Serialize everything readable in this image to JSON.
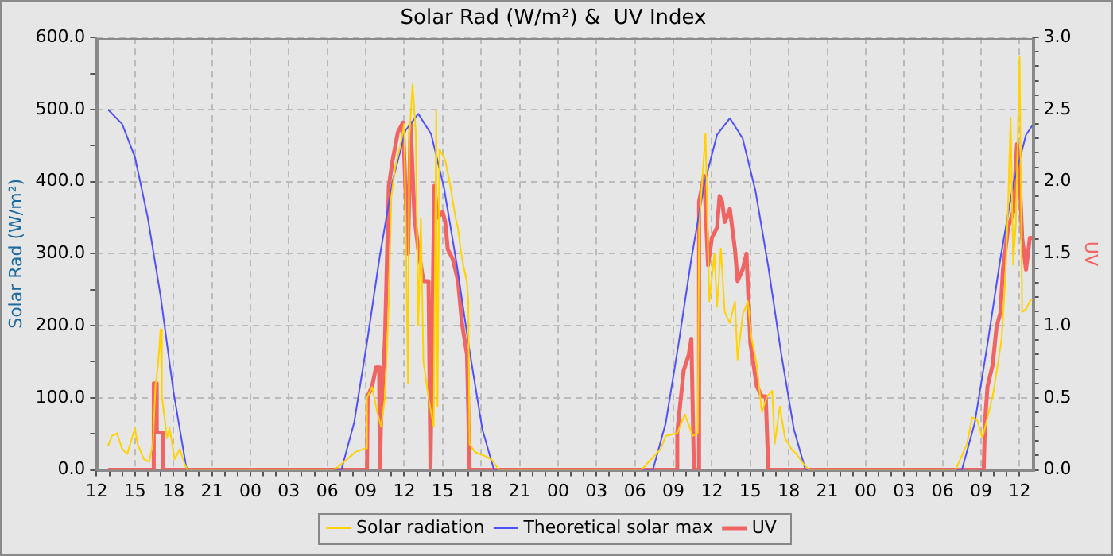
{
  "chart_data": {
    "type": "line",
    "title": "Solar Rad (W/m²) &  UV Index",
    "ylabel": "Solar Rad (W/m²)",
    "y2label": "UV",
    "xlim": [
      "--01-01T12:00",
      "--01-04T13:00"
    ],
    "xticks": [
      {
        "value": "--01-01T12:00",
        "label": "12"
      },
      {
        "value": "--01-01T13:00",
        "label": null
      },
      {
        "value": "--01-01T14:00",
        "label": null
      },
      {
        "value": "--01-01T15:00",
        "label": "15"
      },
      {
        "value": "--01-01T16:00",
        "label": null
      },
      {
        "value": "--01-01T17:00",
        "label": null
      },
      {
        "value": "--01-01T18:00",
        "label": "18"
      },
      {
        "value": "--01-01T19:00",
        "label": null
      },
      {
        "value": "--01-01T20:00",
        "label": null
      },
      {
        "value": "--01-01T21:00",
        "label": "21"
      },
      {
        "value": "--01-01T22:00",
        "label": null
      },
      {
        "value": "--01-01T23:00",
        "label": null
      },
      {
        "value": "--01-02T00:00",
        "label": "00"
      },
      {
        "value": "--01-02T01:00",
        "label": null
      },
      {
        "value": "--01-02T02:00",
        "label": null
      },
      {
        "value": "--01-02T03:00",
        "label": "03"
      },
      {
        "value": "--01-02T04:00",
        "label": null
      },
      {
        "value": "--01-02T05:00",
        "label": null
      },
      {
        "value": "--01-02T06:00",
        "label": "06"
      },
      {
        "value": "--01-02T07:00",
        "label": null
      },
      {
        "value": "--01-02T08:00",
        "label": null
      },
      {
        "value": "--01-02T09:00",
        "label": "09"
      },
      {
        "value": "--01-02T10:00",
        "label": null
      },
      {
        "value": "--01-02T11:00",
        "label": null
      },
      {
        "value": "--01-02T12:00",
        "label": "12"
      },
      {
        "value": "--01-02T13:00",
        "label": null
      },
      {
        "value": "--01-02T14:00",
        "label": null
      },
      {
        "value": "--01-02T15:00",
        "label": "15"
      },
      {
        "value": "--01-02T16:00",
        "label": null
      },
      {
        "value": "--01-02T17:00",
        "label": null
      },
      {
        "value": "--01-02T18:00",
        "label": "18"
      },
      {
        "value": "--01-02T19:00",
        "label": null
      },
      {
        "value": "--01-02T20:00",
        "label": null
      },
      {
        "value": "--01-02T21:00",
        "label": "21"
      },
      {
        "value": "--01-02T22:00",
        "label": null
      },
      {
        "value": "--01-02T23:00",
        "label": null
      },
      {
        "value": "--01-03T00:00",
        "label": "00"
      },
      {
        "value": "--01-03T01:00",
        "label": null
      },
      {
        "value": "--01-03T02:00",
        "label": null
      },
      {
        "value": "--01-03T03:00",
        "label": "03"
      },
      {
        "value": "--01-03T04:00",
        "label": null
      },
      {
        "value": "--01-03T05:00",
        "label": null
      },
      {
        "value": "--01-03T06:00",
        "label": "06"
      },
      {
        "value": "--01-03T07:00",
        "label": null
      },
      {
        "value": "--01-03T08:00",
        "label": null
      },
      {
        "value": "--01-03T09:00",
        "label": "09"
      },
      {
        "value": "--01-03T10:00",
        "label": null
      },
      {
        "value": "--01-03T11:00",
        "label": null
      },
      {
        "value": "--01-03T12:00",
        "label": "12"
      },
      {
        "value": "--01-03T13:00",
        "label": null
      },
      {
        "value": "--01-03T14:00",
        "label": null
      },
      {
        "value": "--01-03T15:00",
        "label": "15"
      },
      {
        "value": "--01-03T16:00",
        "label": null
      },
      {
        "value": "--01-03T17:00",
        "label": null
      },
      {
        "value": "--01-03T18:00",
        "label": "18"
      },
      {
        "value": "--01-03T19:00",
        "label": null
      },
      {
        "value": "--01-03T20:00",
        "label": null
      },
      {
        "value": "--01-03T21:00",
        "label": "21"
      },
      {
        "value": "--01-03T22:00",
        "label": null
      },
      {
        "value": "--01-03T23:00",
        "label": null
      },
      {
        "value": "--01-04T00:00",
        "label": "00"
      },
      {
        "value": "--01-04T01:00",
        "label": null
      },
      {
        "value": "--01-04T02:00",
        "label": null
      },
      {
        "value": "--01-04T03:00",
        "label": "03"
      },
      {
        "value": "--01-04T04:00",
        "label": null
      },
      {
        "value": "--01-04T05:00",
        "label": null
      },
      {
        "value": "--01-04T06:00",
        "label": "06"
      },
      {
        "value": "--01-04T07:00",
        "label": null
      },
      {
        "value": "--01-04T08:00",
        "label": null
      },
      {
        "value": "--01-04T09:00",
        "label": "09"
      },
      {
        "value": "--01-04T10:00",
        "label": null
      },
      {
        "value": "--01-04T11:00",
        "label": null
      },
      {
        "value": "--01-04T12:00",
        "label": "12"
      }
    ],
    "ylim": [
      0,
      600
    ],
    "yticks": [
      {
        "value": 0,
        "label": "0.0"
      },
      {
        "value": 50,
        "label": null
      },
      {
        "value": 100,
        "label": "100.0"
      },
      {
        "value": 150,
        "label": null
      },
      {
        "value": 200,
        "label": "200.0"
      },
      {
        "value": 250,
        "label": null
      },
      {
        "value": 300,
        "label": "300.0"
      },
      {
        "value": 350,
        "label": null
      },
      {
        "value": 400,
        "label": "400.0"
      },
      {
        "value": 450,
        "label": null
      },
      {
        "value": 500,
        "label": "500.0"
      },
      {
        "value": 550,
        "label": null
      },
      {
        "value": 600,
        "label": "600.0"
      }
    ],
    "y2lim": [
      0,
      3
    ],
    "y2ticks": [
      {
        "value": 0,
        "label": "0.0"
      },
      {
        "value": 0.1,
        "label": null
      },
      {
        "value": 0.2,
        "label": null
      },
      {
        "value": 0.3,
        "label": null
      },
      {
        "value": 0.4,
        "label": null
      },
      {
        "value": 0.5,
        "label": "0.5"
      },
      {
        "value": 0.6,
        "label": null
      },
      {
        "value": 0.7,
        "label": null
      },
      {
        "value": 0.8,
        "label": null
      },
      {
        "value": 0.9,
        "label": null
      },
      {
        "value": 1,
        "label": "1.0"
      },
      {
        "value": 1.1,
        "label": null
      },
      {
        "value": 1.2,
        "label": null
      },
      {
        "value": 1.3,
        "label": null
      },
      {
        "value": 1.4,
        "label": null
      },
      {
        "value": 1.5,
        "label": "1.5"
      },
      {
        "value": 1.6,
        "label": null
      },
      {
        "value": 1.7,
        "label": null
      },
      {
        "value": 1.8,
        "label": null
      },
      {
        "value": 1.9,
        "label": null
      },
      {
        "value": 2,
        "label": "2.0"
      },
      {
        "value": 2.1,
        "label": null
      },
      {
        "value": 2.2,
        "label": null
      },
      {
        "value": 2.3,
        "label": null
      },
      {
        "value": 2.4,
        "label": null
      },
      {
        "value": 2.5,
        "label": "2.5"
      },
      {
        "value": 2.6,
        "label": null
      },
      {
        "value": 2.7,
        "label": null
      },
      {
        "value": 2.8,
        "label": null
      },
      {
        "value": 2.9,
        "label": null
      },
      {
        "value": 3,
        "label": "3.0"
      }
    ],
    "grid": true,
    "legend": "bottom",
    "marker": "none",
    "line_style": "solid",
    "series": [
      {
        "name": "Solar radiation",
        "color": "#ffd200",
        "x": [
          "--01-01T12:54",
          "--01-01T13:12",
          "--01-01T13:36",
          "--01-01T14:00",
          "--01-01T14:24",
          "--01-01T15:00",
          "--01-01T15:12",
          "--01-01T15:42",
          "--01-01T16:06",
          "--01-01T16:24",
          "--01-01T16:36",
          "--01-01T16:48",
          "--01-01T17:00",
          "--01-01T17:06",
          "--01-01T17:30",
          "--01-01T17:42",
          "--01-01T18:06",
          "--01-01T18:30",
          "--01-01T18:54",
          "--01-01T19:06",
          "--01-02T06:30",
          "--01-02T06:54",
          "--01-02T08:12",
          "--01-02T09:00",
          "--01-02T09:06",
          "--01-02T09:30",
          "--01-02T09:54",
          "--01-02T10:12",
          "--01-02T10:30",
          "--01-02T10:48",
          "--01-02T11:00",
          "--01-02T11:18",
          "--01-02T11:42",
          "--01-02T12:00",
          "--01-02T12:18",
          "--01-02T12:24",
          "--01-02T12:39",
          "--01-02T12:54",
          "--01-02T13:06",
          "--01-02T13:18",
          "--01-02T13:30",
          "--01-02T13:54",
          "--01-02T14:18",
          "--01-02T14:30",
          "--01-02T14:36",
          "--01-02T14:45",
          "--01-02T15:12",
          "--01-02T15:36",
          "--01-02T16:00",
          "--01-02T16:12",
          "--01-02T16:24",
          "--01-02T16:36",
          "--01-02T16:54",
          "--01-02T17:00",
          "--01-02T17:06",
          "--01-02T17:30",
          "--01-02T18:12",
          "--01-02T18:48",
          "--01-02T19:24",
          "--01-03T06:30",
          "--01-03T08:00",
          "--01-03T08:24",
          "--01-03T09:18",
          "--01-03T09:54",
          "--01-03T10:30",
          "--01-03T10:54",
          "--01-03T11:00",
          "--01-03T11:18",
          "--01-03T11:30",
          "--01-03T11:42",
          "--01-03T11:48",
          "--01-03T12:12",
          "--01-03T12:24",
          "--01-03T12:42",
          "--01-03T13:00",
          "--01-03T13:24",
          "--01-03T13:48",
          "--01-03T14:00",
          "--01-03T14:24",
          "--01-03T14:48",
          "--01-03T15:06",
          "--01-03T15:30",
          "--01-03T15:54",
          "--01-03T16:18",
          "--01-03T16:42",
          "--01-03T16:54",
          "--01-03T17:18",
          "--01-03T17:42",
          "--01-03T18:12",
          "--01-03T18:36",
          "--01-03T19:12",
          "--01-03T19:36",
          "--01-04T07:00",
          "--01-04T07:54",
          "--01-04T08:18",
          "--01-04T08:42",
          "--01-04T09:06",
          "--01-04T09:30",
          "--01-04T09:54",
          "--01-04T10:18",
          "--01-04T10:36",
          "--01-04T10:54",
          "--01-04T11:06",
          "--01-04T11:18",
          "--01-04T11:30",
          "--01-04T11:42",
          "--01-04T12:00",
          "--01-04T12:12",
          "--01-04T12:30",
          "--01-04T12:48",
          "--01-04T13:00"
        ],
        "values": [
          33,
          47,
          51,
          29,
          22,
          58,
          36,
          15,
          11,
          36,
          117,
          146,
          195,
          102,
          44,
          58,
          15,
          29,
          7,
          0,
          0,
          5,
          25,
          30,
          100,
          115,
          80,
          60,
          100,
          230,
          380,
          420,
          450,
          480,
          120,
          460,
          535,
          470,
          200,
          350,
          150,
          100,
          60,
          500,
          88,
          445,
          430,
          394,
          350,
          335,
          306,
          285,
          260,
          233,
          36,
          25,
          20,
          15,
          0,
          0,
          29,
          47,
          51,
          77,
          47,
          51,
          336,
          416,
          467,
          307,
          234,
          300,
          226,
          307,
          219,
          204,
          234,
          153,
          215,
          234,
          182,
          146,
          80,
          102,
          110,
          36,
          88,
          44,
          29,
          22,
          7,
          0,
          0,
          36,
          73,
          69,
          44,
          73,
          102,
          146,
          182,
          270,
          365,
          489,
          285,
          340,
          573,
          219,
          223,
          234,
          237
        ]
      },
      {
        "name": "Theoretical solar max",
        "color": "#5050ff",
        "x": [
          "--01-01T12:54",
          "--01-01T14:00",
          "--01-01T15:00",
          "--01-01T16:00",
          "--01-01T17:00",
          "--01-01T18:00",
          "--01-01T19:00",
          "--01-01T19:12",
          "--01-02T07:06",
          "--01-02T08:06",
          "--01-02T09:06",
          "--01-02T10:06",
          "--01-02T11:06",
          "--01-02T12:06",
          "--01-02T13:06",
          "--01-02T14:06",
          "--01-02T15:06",
          "--01-02T16:06",
          "--01-02T17:06",
          "--01-02T18:06",
          "--01-02T19:00",
          "--01-03T07:24",
          "--01-03T08:24",
          "--01-03T09:24",
          "--01-03T10:24",
          "--01-03T11:24",
          "--01-03T12:24",
          "--01-03T13:24",
          "--01-03T14:24",
          "--01-03T15:24",
          "--01-03T16:24",
          "--01-03T17:24",
          "--01-03T18:24",
          "--01-03T19:18",
          "--01-04T07:30",
          "--01-04T08:30",
          "--01-04T09:30",
          "--01-04T10:30",
          "--01-04T11:30",
          "--01-04T12:30",
          "--01-04T13:00"
        ],
        "values": [
          500,
          480,
          434,
          350,
          241,
          109,
          4,
          0,
          0,
          66,
          177,
          297,
          401,
          471,
          494,
          466,
          392,
          285,
          165,
          56,
          0,
          0,
          65,
          175,
          293,
          396,
          465,
          488,
          460,
          387,
          282,
          162,
          56,
          0,
          0,
          65,
          175,
          293,
          396,
          465,
          478
        ]
      },
      {
        "name": "UV",
        "color": "#f06464",
        "axis": "y2",
        "x": [
          "--01-01T12:54",
          "--01-01T16:27",
          "--01-01T16:28",
          "--01-01T16:39",
          "--01-01T16:42",
          "--01-01T17:09",
          "--01-01T17:12",
          "--01-02T09:06",
          "--01-02T09:09",
          "--01-02T09:30",
          "--01-02T09:48",
          "--01-02T10:03",
          "--01-02T10:06",
          "--01-02T10:12",
          "--01-02T10:30",
          "--01-02T10:48",
          "--01-02T11:06",
          "--01-02T11:30",
          "--01-02T11:54",
          "--01-02T12:18",
          "--01-02T12:30",
          "--01-02T12:48",
          "--01-02T13:06",
          "--01-02T13:30",
          "--01-02T13:54",
          "--01-02T14:03",
          "--01-02T14:21",
          "--01-02T14:36",
          "--01-02T15:00",
          "--01-02T15:12",
          "--01-02T15:24",
          "--01-02T15:48",
          "--01-02T16:12",
          "--01-02T16:30",
          "--01-02T16:54",
          "--01-02T17:06",
          "--01-03T09:12",
          "--01-03T09:18",
          "--01-03T09:48",
          "--01-03T10:12",
          "--01-03T10:24",
          "--01-03T10:36",
          "--01-03T10:57",
          "--01-03T11:00",
          "--01-03T11:24",
          "--01-03T11:42",
          "--01-03T12:00",
          "--01-03T12:24",
          "--01-03T12:36",
          "--01-03T12:48",
          "--01-03T13:00",
          "--01-03T13:24",
          "--01-03T13:48",
          "--01-03T14:00",
          "--01-03T14:24",
          "--01-03T14:42",
          "--01-03T15:00",
          "--01-03T15:30",
          "--01-03T15:54",
          "--01-03T16:12",
          "--01-03T16:24",
          "--01-04T09:12",
          "--01-04T09:18",
          "--01-04T09:30",
          "--01-04T09:54",
          "--01-04T10:12",
          "--01-04T10:30",
          "--01-04T10:42",
          "--01-04T10:54",
          "--01-04T11:06",
          "--01-04T11:30",
          "--01-04T11:48",
          "--01-04T12:00",
          "--01-04T12:12",
          "--01-04T12:30",
          "--01-04T12:48",
          "--01-04T13:00"
        ],
        "values": [
          0,
          0,
          0.6,
          0.6,
          0.26,
          0.26,
          0,
          0,
          0.51,
          0.58,
          0.71,
          0.71,
          0,
          0.36,
          0.91,
          1.97,
          2.15,
          2.34,
          2.41,
          1.5,
          2.41,
          1.75,
          1.53,
          1.31,
          1.31,
          0,
          1.97,
          1.75,
          1.79,
          1.72,
          1.53,
          1.46,
          1.31,
          1.02,
          0.8,
          0,
          0,
          0.26,
          0.69,
          0.8,
          0.91,
          0,
          0,
          1.86,
          2.04,
          1.42,
          1.61,
          1.68,
          1.9,
          1.86,
          1.72,
          1.81,
          1.53,
          1.31,
          1.39,
          1.5,
          0.88,
          0.58,
          0.51,
          0.51,
          0,
          0,
          0.33,
          0.58,
          0.73,
          0.99,
          1.09,
          1.39,
          1.53,
          1.68,
          1.79,
          2.26,
          2.04,
          1.61,
          1.39,
          1.61,
          1.61
        ]
      }
    ]
  }
}
